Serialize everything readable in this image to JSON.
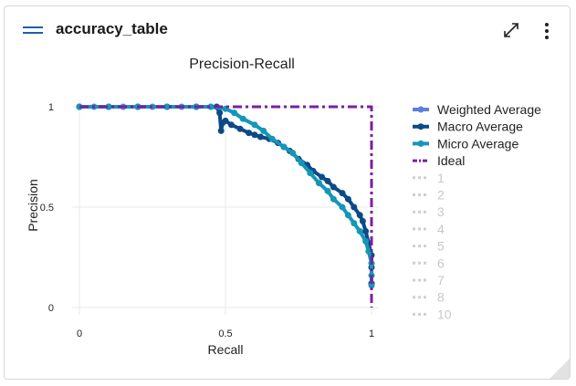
{
  "card": {
    "title": "accuracy_table",
    "icons": {
      "menu": "hamburger-icon",
      "expand": "expand-icon",
      "more": "more-vertical-icon",
      "resize": "resize-handle-icon"
    }
  },
  "chart_data": {
    "type": "line",
    "title": "Precision-Recall",
    "xlabel": "Recall",
    "ylabel": "Precision",
    "xlim": [
      0,
      1
    ],
    "ylim": [
      0,
      1
    ],
    "xticks": [
      0,
      0.5,
      1
    ],
    "xtick_labels": [
      "0",
      "0.5",
      "1"
    ],
    "yticks": [
      0,
      0.5,
      1
    ],
    "ytick_labels": [
      "0",
      "0.5",
      "1"
    ],
    "grid": true,
    "legend_position": "right",
    "series": [
      {
        "name": "Weighted Average",
        "color": "#5b7fe0",
        "style": "solid-markers",
        "x": [
          0,
          0.05,
          0.1,
          0.15,
          0.2,
          0.25,
          0.3,
          0.35,
          0.4,
          0.45
        ],
        "y": [
          1,
          1,
          1,
          1,
          1,
          1,
          1,
          1,
          1,
          1
        ]
      },
      {
        "name": "Macro Average",
        "color": "#0b4a86",
        "style": "solid-markers",
        "x": [
          0,
          0.1,
          0.2,
          0.3,
          0.4,
          0.47,
          0.48,
          0.485,
          0.49,
          0.5,
          0.52,
          0.55,
          0.58,
          0.6,
          0.62,
          0.65,
          0.68,
          0.7,
          0.72,
          0.75,
          0.78,
          0.8,
          0.83,
          0.85,
          0.87,
          0.9,
          0.92,
          0.94,
          0.96,
          0.97,
          0.98,
          0.99,
          1.0,
          1.0,
          1.0
        ],
        "y": [
          1,
          1,
          1,
          1,
          1,
          1,
          0.97,
          0.88,
          0.92,
          0.93,
          0.91,
          0.89,
          0.87,
          0.86,
          0.85,
          0.84,
          0.82,
          0.8,
          0.78,
          0.74,
          0.71,
          0.68,
          0.65,
          0.63,
          0.6,
          0.57,
          0.54,
          0.5,
          0.46,
          0.43,
          0.38,
          0.32,
          0.26,
          0.2,
          0.12
        ]
      },
      {
        "name": "Micro Average",
        "color": "#1596b8",
        "style": "solid-markers",
        "x": [
          0,
          0.1,
          0.2,
          0.3,
          0.4,
          0.45,
          0.5,
          0.53,
          0.56,
          0.6,
          0.63,
          0.66,
          0.7,
          0.73,
          0.76,
          0.79,
          0.82,
          0.85,
          0.87,
          0.9,
          0.92,
          0.94,
          0.96,
          0.98,
          0.99,
          1.0,
          1.0,
          1.0
        ],
        "y": [
          1,
          1,
          1,
          1,
          1,
          1,
          0.99,
          0.97,
          0.94,
          0.91,
          0.88,
          0.84,
          0.8,
          0.77,
          0.72,
          0.67,
          0.62,
          0.58,
          0.54,
          0.5,
          0.46,
          0.42,
          0.38,
          0.33,
          0.28,
          0.22,
          0.16,
          0.11
        ]
      },
      {
        "name": "Ideal",
        "color": "#7a1fa2",
        "style": "dashdot",
        "x": [
          0,
          1,
          1
        ],
        "y": [
          1,
          1,
          0
        ]
      }
    ],
    "legend_extra": [
      "1",
      "2",
      "3",
      "4",
      "5",
      "6",
      "7",
      "8",
      "10"
    ]
  }
}
